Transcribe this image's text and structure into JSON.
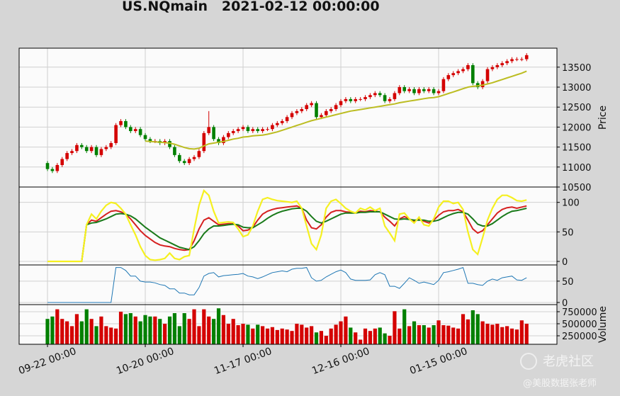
{
  "chart_data": [
    {
      "type": "candlestick",
      "title": "US.NQmain   2021-02-12 00:00:00",
      "ylabel": "Price",
      "annotations": [
        "老虎社区",
        "@美股数据张老师"
      ],
      "xlim": [
        -5.8,
        104.2
      ],
      "ylim": [
        10500,
        13975
      ],
      "yticks": [
        10500,
        11000,
        11500,
        12000,
        12500,
        13000,
        13500
      ],
      "grid": true,
      "up_color": "#d40000",
      "down_color": "#008000",
      "open": [
        11100,
        10950,
        10900,
        11050,
        11200,
        11350,
        11400,
        11550,
        11500,
        11400,
        11500,
        11300,
        11450,
        11500,
        11600,
        12050,
        12150,
        12000,
        11900,
        11950,
        11800,
        11700,
        11650,
        11650,
        11600,
        11650,
        11500,
        11300,
        11150,
        11100,
        11200,
        11250,
        11400,
        11850,
        12000,
        11700,
        11600,
        11750,
        11850,
        11900,
        11950,
        12000,
        11900,
        11950,
        11900,
        11950,
        11950,
        12050,
        12100,
        12150,
        12250,
        12350,
        12400,
        12450,
        12550,
        12600,
        12250,
        12300,
        12400,
        12450,
        12550,
        12650,
        12700,
        12650,
        12700,
        12700,
        12750,
        12800,
        12850,
        12800,
        12650,
        12700,
        12850,
        13000,
        12900,
        12950,
        12850,
        12950,
        12900,
        12950,
        12850,
        12900,
        13200,
        13300,
        13350,
        13400,
        13450,
        13550,
        13100,
        13000,
        13150,
        13450,
        13500,
        13550,
        13600,
        13650,
        13700,
        13700,
        13700
      ],
      "high": [
        11150,
        11000,
        11100,
        11250,
        11400,
        11450,
        11600,
        11600,
        11550,
        11550,
        11550,
        11500,
        11550,
        11650,
        12100,
        12200,
        12200,
        12050,
        12000,
        12000,
        11850,
        11750,
        11700,
        11700,
        11700,
        11700,
        11550,
        11350,
        11200,
        11250,
        11300,
        11450,
        11900,
        12400,
        12050,
        11750,
        11800,
        11900,
        11950,
        12000,
        12050,
        12050,
        12000,
        12000,
        12000,
        12000,
        12100,
        12150,
        12200,
        12300,
        12400,
        12450,
        12500,
        12600,
        12650,
        12650,
        12350,
        12450,
        12500,
        12600,
        12700,
        12750,
        12750,
        12750,
        12750,
        12800,
        12850,
        12900,
        12900,
        12850,
        12750,
        12900,
        13050,
        13050,
        13000,
        13000,
        13000,
        13000,
        13000,
        13000,
        12950,
        13250,
        13350,
        13400,
        13450,
        13500,
        13600,
        13600,
        13150,
        13200,
        13500,
        13550,
        13600,
        13650,
        13700,
        13750,
        13750,
        13750,
        13850
      ],
      "low": [
        10900,
        10850,
        10850,
        11000,
        11150,
        11300,
        11350,
        11450,
        11350,
        11350,
        11250,
        11250,
        11400,
        11450,
        11550,
        12000,
        11950,
        11850,
        11850,
        11750,
        11650,
        11600,
        11600,
        11550,
        11550,
        11450,
        11250,
        11100,
        11050,
        11050,
        11150,
        11200,
        11350,
        11800,
        11650,
        11550,
        11550,
        11700,
        11800,
        11850,
        11900,
        11850,
        11850,
        11850,
        11850,
        11900,
        11900,
        12000,
        12050,
        12100,
        12200,
        12300,
        12350,
        12400,
        12500,
        12200,
        12200,
        12250,
        12350,
        12400,
        12500,
        12600,
        12600,
        12600,
        12650,
        12650,
        12700,
        12750,
        12750,
        12600,
        12600,
        12650,
        12800,
        12850,
        12850,
        12800,
        12800,
        12850,
        12850,
        12800,
        12800,
        12850,
        13150,
        13250,
        13300,
        13350,
        13400,
        13050,
        12950,
        12950,
        13100,
        13400,
        13450,
        13500,
        13550,
        13600,
        13650,
        13650,
        13650
      ],
      "close": [
        10950,
        10900,
        11050,
        11200,
        11350,
        11400,
        11550,
        11500,
        11400,
        11500,
        11300,
        11450,
        11500,
        11600,
        12050,
        12150,
        12000,
        11900,
        11950,
        11800,
        11700,
        11650,
        11650,
        11600,
        11650,
        11500,
        11300,
        11150,
        11100,
        11200,
        11250,
        11400,
        11850,
        12000,
        11700,
        11600,
        11750,
        11850,
        11900,
        11950,
        12000,
        11900,
        11950,
        11900,
        11950,
        11950,
        12050,
        12100,
        12150,
        12250,
        12350,
        12400,
        12450,
        12550,
        12600,
        12250,
        12300,
        12400,
        12450,
        12550,
        12650,
        12700,
        12650,
        12700,
        12700,
        12750,
        12800,
        12850,
        12800,
        12650,
        12700,
        12850,
        13000,
        12900,
        12950,
        12850,
        12950,
        12900,
        12950,
        12850,
        12900,
        13200,
        13300,
        13350,
        13400,
        13450,
        13550,
        13100,
        13000,
        13150,
        13450,
        13500,
        13550,
        13600,
        13650,
        13700,
        13700,
        13700,
        13800
      ],
      "series": [
        {
          "color": "#bcbd22",
          "values": [
            null,
            null,
            null,
            null,
            null,
            null,
            null,
            null,
            null,
            null,
            null,
            null,
            null,
            null,
            null,
            null,
            null,
            null,
            null,
            null,
            11650,
            11640,
            11630,
            11620,
            11610,
            11600,
            11570,
            11530,
            11490,
            11460,
            11450,
            11470,
            11530,
            11580,
            11600,
            11620,
            11640,
            11670,
            11700,
            11720,
            11750,
            11760,
            11780,
            11790,
            11800,
            11820,
            11850,
            11880,
            11920,
            11960,
            12000,
            12040,
            12080,
            12120,
            12160,
            12190,
            12220,
            12250,
            12280,
            12310,
            12340,
            12370,
            12400,
            12420,
            12440,
            12460,
            12480,
            12500,
            12520,
            12540,
            12560,
            12580,
            12610,
            12630,
            12650,
            12670,
            12690,
            12710,
            12730,
            12740,
            12760,
            12800,
            12840,
            12880,
            12920,
            12960,
            13000,
            13020,
            13030,
            13050,
            13080,
            13110,
            13150,
            13190,
            13230,
            13270,
            13310,
            13350,
            13400
          ]
        }
      ]
    },
    {
      "type": "line",
      "xlim": [
        -5.8,
        104.2
      ],
      "ylim": [
        -6,
        126
      ],
      "yticks": [
        0,
        50,
        100
      ],
      "grid": true,
      "series": [
        {
          "color": "#d62020",
          "values": [
            0,
            0,
            0,
            0,
            0,
            0,
            0,
            0,
            62,
            70,
            68,
            74,
            80,
            85,
            86,
            84,
            80,
            72,
            62,
            52,
            44,
            38,
            32,
            28,
            26,
            25,
            22,
            20,
            19,
            20,
            35,
            55,
            70,
            74,
            68,
            62,
            63,
            64,
            64,
            60,
            52,
            53,
            58,
            70,
            80,
            85,
            88,
            90,
            91,
            92,
            93,
            94,
            90,
            70,
            57,
            55,
            62,
            75,
            83,
            86,
            86,
            84,
            83,
            82,
            85,
            84,
            86,
            85,
            84,
            75,
            68,
            60,
            72,
            76,
            72,
            68,
            72,
            68,
            65,
            70,
            78,
            84,
            86,
            86,
            88,
            84,
            70,
            55,
            48,
            52,
            62,
            72,
            82,
            88,
            91,
            92,
            90,
            92,
            94
          ]
        },
        {
          "color": "#1a7a1a",
          "values": [
            0,
            0,
            0,
            0,
            0,
            0,
            0,
            0,
            62,
            65,
            66,
            69,
            72,
            76,
            80,
            81,
            80,
            77,
            72,
            65,
            58,
            52,
            46,
            40,
            36,
            32,
            28,
            24,
            22,
            20,
            25,
            35,
            47,
            55,
            60,
            60,
            61,
            62,
            63,
            62,
            58,
            57,
            57,
            62,
            67,
            73,
            78,
            82,
            85,
            87,
            89,
            90,
            90,
            85,
            76,
            68,
            65,
            68,
            72,
            76,
            80,
            82,
            82,
            82,
            83,
            83,
            84,
            84,
            84,
            80,
            76,
            72,
            71,
            72,
            71,
            70,
            70,
            70,
            68,
            68,
            70,
            74,
            78,
            81,
            83,
            83,
            80,
            72,
            63,
            60,
            60,
            64,
            70,
            76,
            81,
            85,
            86,
            88,
            90
          ]
        },
        {
          "color": "#f5f020",
          "values": [
            0,
            0,
            0,
            0,
            0,
            0,
            0,
            0,
            62,
            80,
            72,
            85,
            95,
            100,
            98,
            90,
            80,
            62,
            45,
            25,
            10,
            3,
            2,
            3,
            5,
            14,
            5,
            3,
            8,
            10,
            55,
            95,
            120,
            112,
            85,
            65,
            66,
            67,
            66,
            55,
            42,
            45,
            60,
            85,
            105,
            108,
            105,
            103,
            102,
            101,
            100,
            102,
            90,
            60,
            30,
            20,
            45,
            90,
            102,
            105,
            98,
            90,
            85,
            82,
            90,
            87,
            92,
            86,
            90,
            60,
            48,
            35,
            80,
            82,
            72,
            65,
            75,
            62,
            60,
            72,
            92,
            102,
            102,
            98,
            100,
            88,
            50,
            20,
            12,
            40,
            70,
            90,
            105,
            112,
            112,
            108,
            103,
            102,
            104
          ]
        }
      ]
    },
    {
      "type": "line",
      "xlim": [
        -5.8,
        104.2
      ],
      "ylim": [
        -5,
        88
      ],
      "yticks": [
        0,
        50
      ],
      "grid": true,
      "series": [
        {
          "color": "#1f77b4",
          "values": [
            0,
            0,
            0,
            0,
            0,
            0,
            0,
            0,
            0,
            0,
            0,
            0,
            0,
            0,
            82,
            82,
            75,
            62,
            62,
            50,
            48,
            48,
            46,
            42,
            40,
            32,
            32,
            22,
            22,
            18,
            18,
            35,
            62,
            68,
            70,
            60,
            63,
            64,
            65,
            66,
            68,
            62,
            60,
            56,
            60,
            65,
            70,
            72,
            74,
            72,
            78,
            80,
            80,
            82,
            58,
            50,
            52,
            60,
            66,
            72,
            76,
            70,
            55,
            52,
            52,
            52,
            53,
            65,
            70,
            65,
            38,
            38,
            33,
            45,
            58,
            52,
            45,
            48,
            45,
            42,
            52,
            70,
            72,
            75,
            78,
            82,
            45,
            45,
            42,
            40,
            50,
            55,
            52,
            58,
            60,
            62,
            53,
            52,
            58
          ]
        }
      ]
    },
    {
      "type": "bar",
      "ylabel": "Volume",
      "xlim": [
        -5.8,
        104.2
      ],
      "ylim": [
        73500,
        897000
      ],
      "yticks": [
        250000,
        500000,
        750000
      ],
      "grid": true,
      "xticks": [
        {
          "value": 0,
          "label": "09-22 00:00"
        },
        {
          "value": 20,
          "label": "10-20 00:00"
        },
        {
          "value": 40,
          "label": "11-17 00:00"
        },
        {
          "value": 60,
          "label": "12-16 00:00"
        },
        {
          "value": 80,
          "label": "01-15 00:00"
        }
      ],
      "values": [
        600000,
        650000,
        800000,
        600000,
        550000,
        450000,
        700000,
        550000,
        800000,
        600000,
        450000,
        650000,
        450000,
        420000,
        400000,
        750000,
        700000,
        720000,
        650000,
        550000,
        680000,
        650000,
        650000,
        600000,
        500000,
        650000,
        720000,
        450000,
        720000,
        600000,
        800000,
        450000,
        800000,
        650000,
        600000,
        820000,
        680000,
        500000,
        600000,
        470000,
        500000,
        480000,
        400000,
        480000,
        450000,
        400000,
        430000,
        370000,
        400000,
        380000,
        350000,
        500000,
        480000,
        420000,
        450000,
        320000,
        350000,
        250000,
        400000,
        480000,
        550000,
        650000,
        420000,
        320000,
        170000,
        400000,
        350000,
        400000,
        420000,
        300000,
        250000,
        760000,
        400000,
        800000,
        450000,
        550000,
        470000,
        470000,
        420000,
        470000,
        570000,
        470000,
        460000,
        420000,
        400000,
        700000,
        590000,
        780000,
        700000,
        550000,
        500000,
        480000,
        500000,
        430000,
        450000,
        400000,
        380000,
        570000,
        500000
      ]
    }
  ]
}
